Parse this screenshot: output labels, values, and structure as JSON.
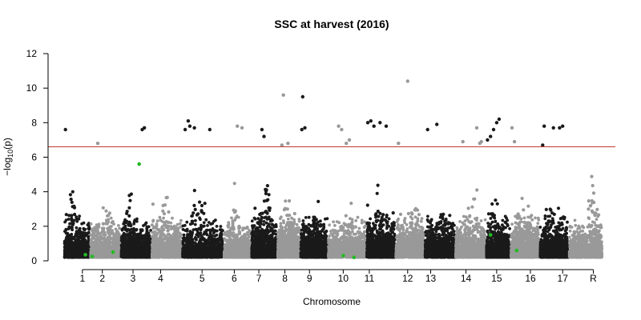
{
  "chart_data": {
    "type": "scatter",
    "subtype": "manhattan",
    "title": "SSC at harvest (2016)",
    "xlabel": "Chromosome",
    "ylabel_parts": [
      "−log",
      "10",
      "(p)"
    ],
    "ylim": [
      0,
      12
    ],
    "yticks": [
      0,
      2,
      4,
      6,
      8,
      10,
      12
    ],
    "threshold": 6.6,
    "threshold_color": "#c0392b",
    "colors": {
      "odd": "#1a1a1a",
      "even": "#999999",
      "highlight": "#22bb22"
    },
    "chromosomes": [
      {
        "label": "1",
        "start": 0.0,
        "end": 0.85,
        "base": 2.2,
        "peak": 5.9,
        "high": [
          {
            "x": 0.05,
            "y": 7.6
          }
        ]
      },
      {
        "label": "2",
        "start": 0.85,
        "end": 1.85,
        "base": 2.4,
        "peak": 5.0,
        "high": [
          {
            "x": 1.1,
            "y": 6.8
          }
        ]
      },
      {
        "label": "3",
        "start": 1.85,
        "end": 2.85,
        "base": 2.4,
        "peak": 5.6,
        "high": [
          {
            "x": 2.55,
            "y": 7.6
          },
          {
            "x": 2.62,
            "y": 7.7
          }
        ]
      },
      {
        "label": "4",
        "start": 2.85,
        "end": 3.85,
        "base": 2.6,
        "peak": 6.0,
        "high": []
      },
      {
        "label": "5",
        "start": 3.85,
        "end": 5.2,
        "base": 2.4,
        "peak": 6.3,
        "high": [
          {
            "x": 3.95,
            "y": 7.6
          },
          {
            "x": 4.05,
            "y": 8.1
          },
          {
            "x": 4.1,
            "y": 7.8
          },
          {
            "x": 4.25,
            "y": 7.7
          },
          {
            "x": 4.75,
            "y": 7.6
          }
        ]
      },
      {
        "label": "6",
        "start": 5.2,
        "end": 6.1,
        "base": 2.1,
        "peak": 5.0,
        "high": [
          {
            "x": 5.65,
            "y": 7.8
          },
          {
            "x": 5.8,
            "y": 7.7
          }
        ]
      },
      {
        "label": "7",
        "start": 6.1,
        "end": 6.95,
        "base": 2.5,
        "peak": 6.5,
        "high": [
          {
            "x": 6.45,
            "y": 7.6
          },
          {
            "x": 6.52,
            "y": 7.2
          }
        ]
      },
      {
        "label": "8",
        "start": 6.95,
        "end": 7.7,
        "base": 2.8,
        "peak": 5.5,
        "high": [
          {
            "x": 7.1,
            "y": 6.7
          },
          {
            "x": 7.15,
            "y": 9.6
          },
          {
            "x": 7.3,
            "y": 6.8
          }
        ]
      },
      {
        "label": "9",
        "start": 7.7,
        "end": 8.6,
        "base": 2.6,
        "peak": 5.2,
        "high": [
          {
            "x": 7.75,
            "y": 7.6
          },
          {
            "x": 7.78,
            "y": 9.5
          },
          {
            "x": 7.85,
            "y": 7.7
          }
        ]
      },
      {
        "label": "10",
        "start": 8.6,
        "end": 9.85,
        "base": 2.4,
        "peak": 5.2,
        "high": [
          {
            "x": 8.95,
            "y": 7.8
          },
          {
            "x": 9.05,
            "y": 7.6
          },
          {
            "x": 9.2,
            "y": 6.8
          },
          {
            "x": 9.3,
            "y": 7.0
          }
        ]
      },
      {
        "label": "11",
        "start": 9.85,
        "end": 10.8,
        "base": 2.8,
        "peak": 5.8,
        "high": [
          {
            "x": 9.9,
            "y": 8.0
          },
          {
            "x": 10.0,
            "y": 8.1
          },
          {
            "x": 10.1,
            "y": 7.8
          },
          {
            "x": 10.3,
            "y": 8.0
          },
          {
            "x": 10.5,
            "y": 7.8
          }
        ]
      },
      {
        "label": "12",
        "start": 10.8,
        "end": 11.75,
        "base": 2.8,
        "peak": 5.4,
        "high": [
          {
            "x": 10.9,
            "y": 6.8
          },
          {
            "x": 11.2,
            "y": 10.4
          }
        ]
      },
      {
        "label": "13",
        "start": 11.75,
        "end": 12.75,
        "base": 2.7,
        "peak": 5.9,
        "high": [
          {
            "x": 11.85,
            "y": 7.6
          },
          {
            "x": 12.15,
            "y": 7.9
          }
        ]
      },
      {
        "label": "14",
        "start": 12.75,
        "end": 13.75,
        "base": 2.6,
        "peak": 5.8,
        "high": [
          {
            "x": 13.0,
            "y": 6.9
          },
          {
            "x": 13.45,
            "y": 7.7
          },
          {
            "x": 13.55,
            "y": 6.8
          },
          {
            "x": 13.6,
            "y": 6.9
          }
        ]
      },
      {
        "label": "15",
        "start": 13.75,
        "end": 14.55,
        "base": 2.4,
        "peak": 5.5,
        "high": [
          {
            "x": 13.8,
            "y": 7.0
          },
          {
            "x": 13.9,
            "y": 7.2
          },
          {
            "x": 14.0,
            "y": 7.6
          },
          {
            "x": 14.1,
            "y": 8.0
          },
          {
            "x": 14.18,
            "y": 8.2
          }
        ]
      },
      {
        "label": "16",
        "start": 14.55,
        "end": 15.5,
        "base": 2.8,
        "peak": 5.8,
        "high": [
          {
            "x": 14.6,
            "y": 7.7
          },
          {
            "x": 14.68,
            "y": 6.9
          }
        ]
      },
      {
        "label": "17",
        "start": 15.5,
        "end": 16.45,
        "base": 2.6,
        "peak": 5.6,
        "high": [
          {
            "x": 15.6,
            "y": 6.7
          },
          {
            "x": 15.65,
            "y": 7.8
          },
          {
            "x": 15.95,
            "y": 7.7
          },
          {
            "x": 16.15,
            "y": 7.7
          },
          {
            "x": 16.25,
            "y": 7.8
          }
        ]
      },
      {
        "label": "R",
        "start": 16.45,
        "end": 17.55,
        "base": 2.3,
        "peak": 5.9,
        "high": []
      }
    ],
    "highlight_points": [
      {
        "x": 0.7,
        "y": 0.35
      },
      {
        "x": 0.92,
        "y": 0.25
      },
      {
        "x": 1.6,
        "y": 0.5
      },
      {
        "x": 2.45,
        "y": 5.6
      },
      {
        "x": 9.1,
        "y": 0.3
      },
      {
        "x": 9.45,
        "y": 0.2
      },
      {
        "x": 13.9,
        "y": 1.5
      },
      {
        "x": 14.75,
        "y": 0.6
      }
    ],
    "xlim": [
      -0.1,
      17.55
    ],
    "xtick_positions": [
      0.6,
      1.25,
      2.25,
      3.15,
      4.5,
      5.55,
      6.35,
      7.2,
      8.0,
      9.1,
      9.95,
      11.2,
      11.95,
      13.1,
      14.1,
      15.2,
      16.25,
      17.25
    ]
  }
}
